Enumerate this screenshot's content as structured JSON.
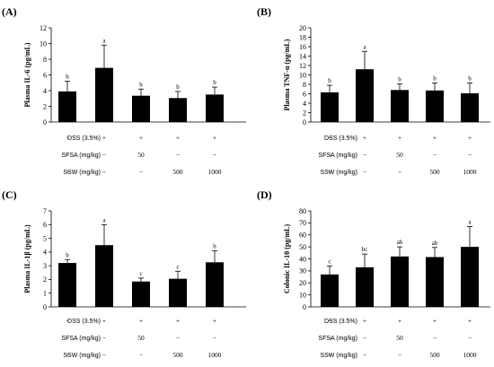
{
  "chart_data": [
    {
      "panel": "(A)",
      "type": "bar",
      "ylabel": "Plasma IL-6 (pg/mL)",
      "ylim": [
        0,
        12
      ],
      "yticks": [
        0,
        2,
        4,
        6,
        8,
        10,
        12
      ],
      "categories": [
        "1",
        "2",
        "3",
        "4",
        "5"
      ],
      "values": [
        3.9,
        6.9,
        3.35,
        3.05,
        3.5
      ],
      "errors": [
        1.3,
        2.9,
        0.85,
        0.85,
        0.95
      ],
      "significance": [
        "b",
        "a",
        "b",
        "b",
        "b"
      ],
      "grid": false
    },
    {
      "panel": "(B)",
      "type": "bar",
      "ylabel": "Plasma TNF-α (pg/mL)",
      "ylim": [
        0,
        20
      ],
      "yticks": [
        0,
        2,
        4,
        6,
        8,
        10,
        12,
        14,
        16,
        18,
        20
      ],
      "categories": [
        "1",
        "2",
        "3",
        "4",
        "5"
      ],
      "values": [
        6.3,
        11.2,
        6.8,
        6.7,
        6.1
      ],
      "errors": [
        1.5,
        3.8,
        1.3,
        1.6,
        2.2
      ],
      "significance": [
        "b",
        "a",
        "b",
        "b",
        "b"
      ],
      "grid": false
    },
    {
      "panel": "(C)",
      "type": "bar",
      "ylabel": "Plasma IL-1β (pg/mL)",
      "ylim": [
        0,
        7
      ],
      "yticks": [
        0,
        1,
        2,
        3,
        4,
        5,
        6,
        7
      ],
      "categories": [
        "1",
        "2",
        "3",
        "4",
        "5"
      ],
      "values": [
        3.2,
        4.5,
        1.85,
        2.05,
        3.25
      ],
      "errors": [
        0.25,
        1.5,
        0.25,
        0.55,
        0.85
      ],
      "significance": [
        "b",
        "a",
        "c",
        "c",
        "b"
      ],
      "grid": false
    },
    {
      "panel": "(D)",
      "type": "bar",
      "ylabel": "Colonic IL-10 (pg/mL)",
      "ylim": [
        0,
        80
      ],
      "yticks": [
        0,
        10,
        20,
        30,
        40,
        50,
        60,
        70,
        80
      ],
      "categories": [
        "1",
        "2",
        "3",
        "4",
        "5"
      ],
      "values": [
        27,
        33,
        42,
        41.5,
        50
      ],
      "errors": [
        7,
        11,
        8,
        8,
        17
      ],
      "significance": [
        "c",
        "bc",
        "ab",
        "ab",
        "a"
      ],
      "grid": false
    }
  ],
  "treatment_rows": [
    {
      "label": "DSS (3.5%)",
      "cells": [
        "−",
        "+",
        "+",
        "+",
        "+"
      ]
    },
    {
      "label": "SFSA (mg/kg)",
      "cells": [
        "−",
        "−",
        "50",
        "−",
        "−"
      ]
    },
    {
      "label": "SSW (mg/kg)",
      "cells": [
        "−",
        "−",
        "−",
        "500",
        "1000"
      ]
    }
  ],
  "colors": {
    "bar": "#000000",
    "axis": "#000000",
    "background": "#ffffff"
  }
}
